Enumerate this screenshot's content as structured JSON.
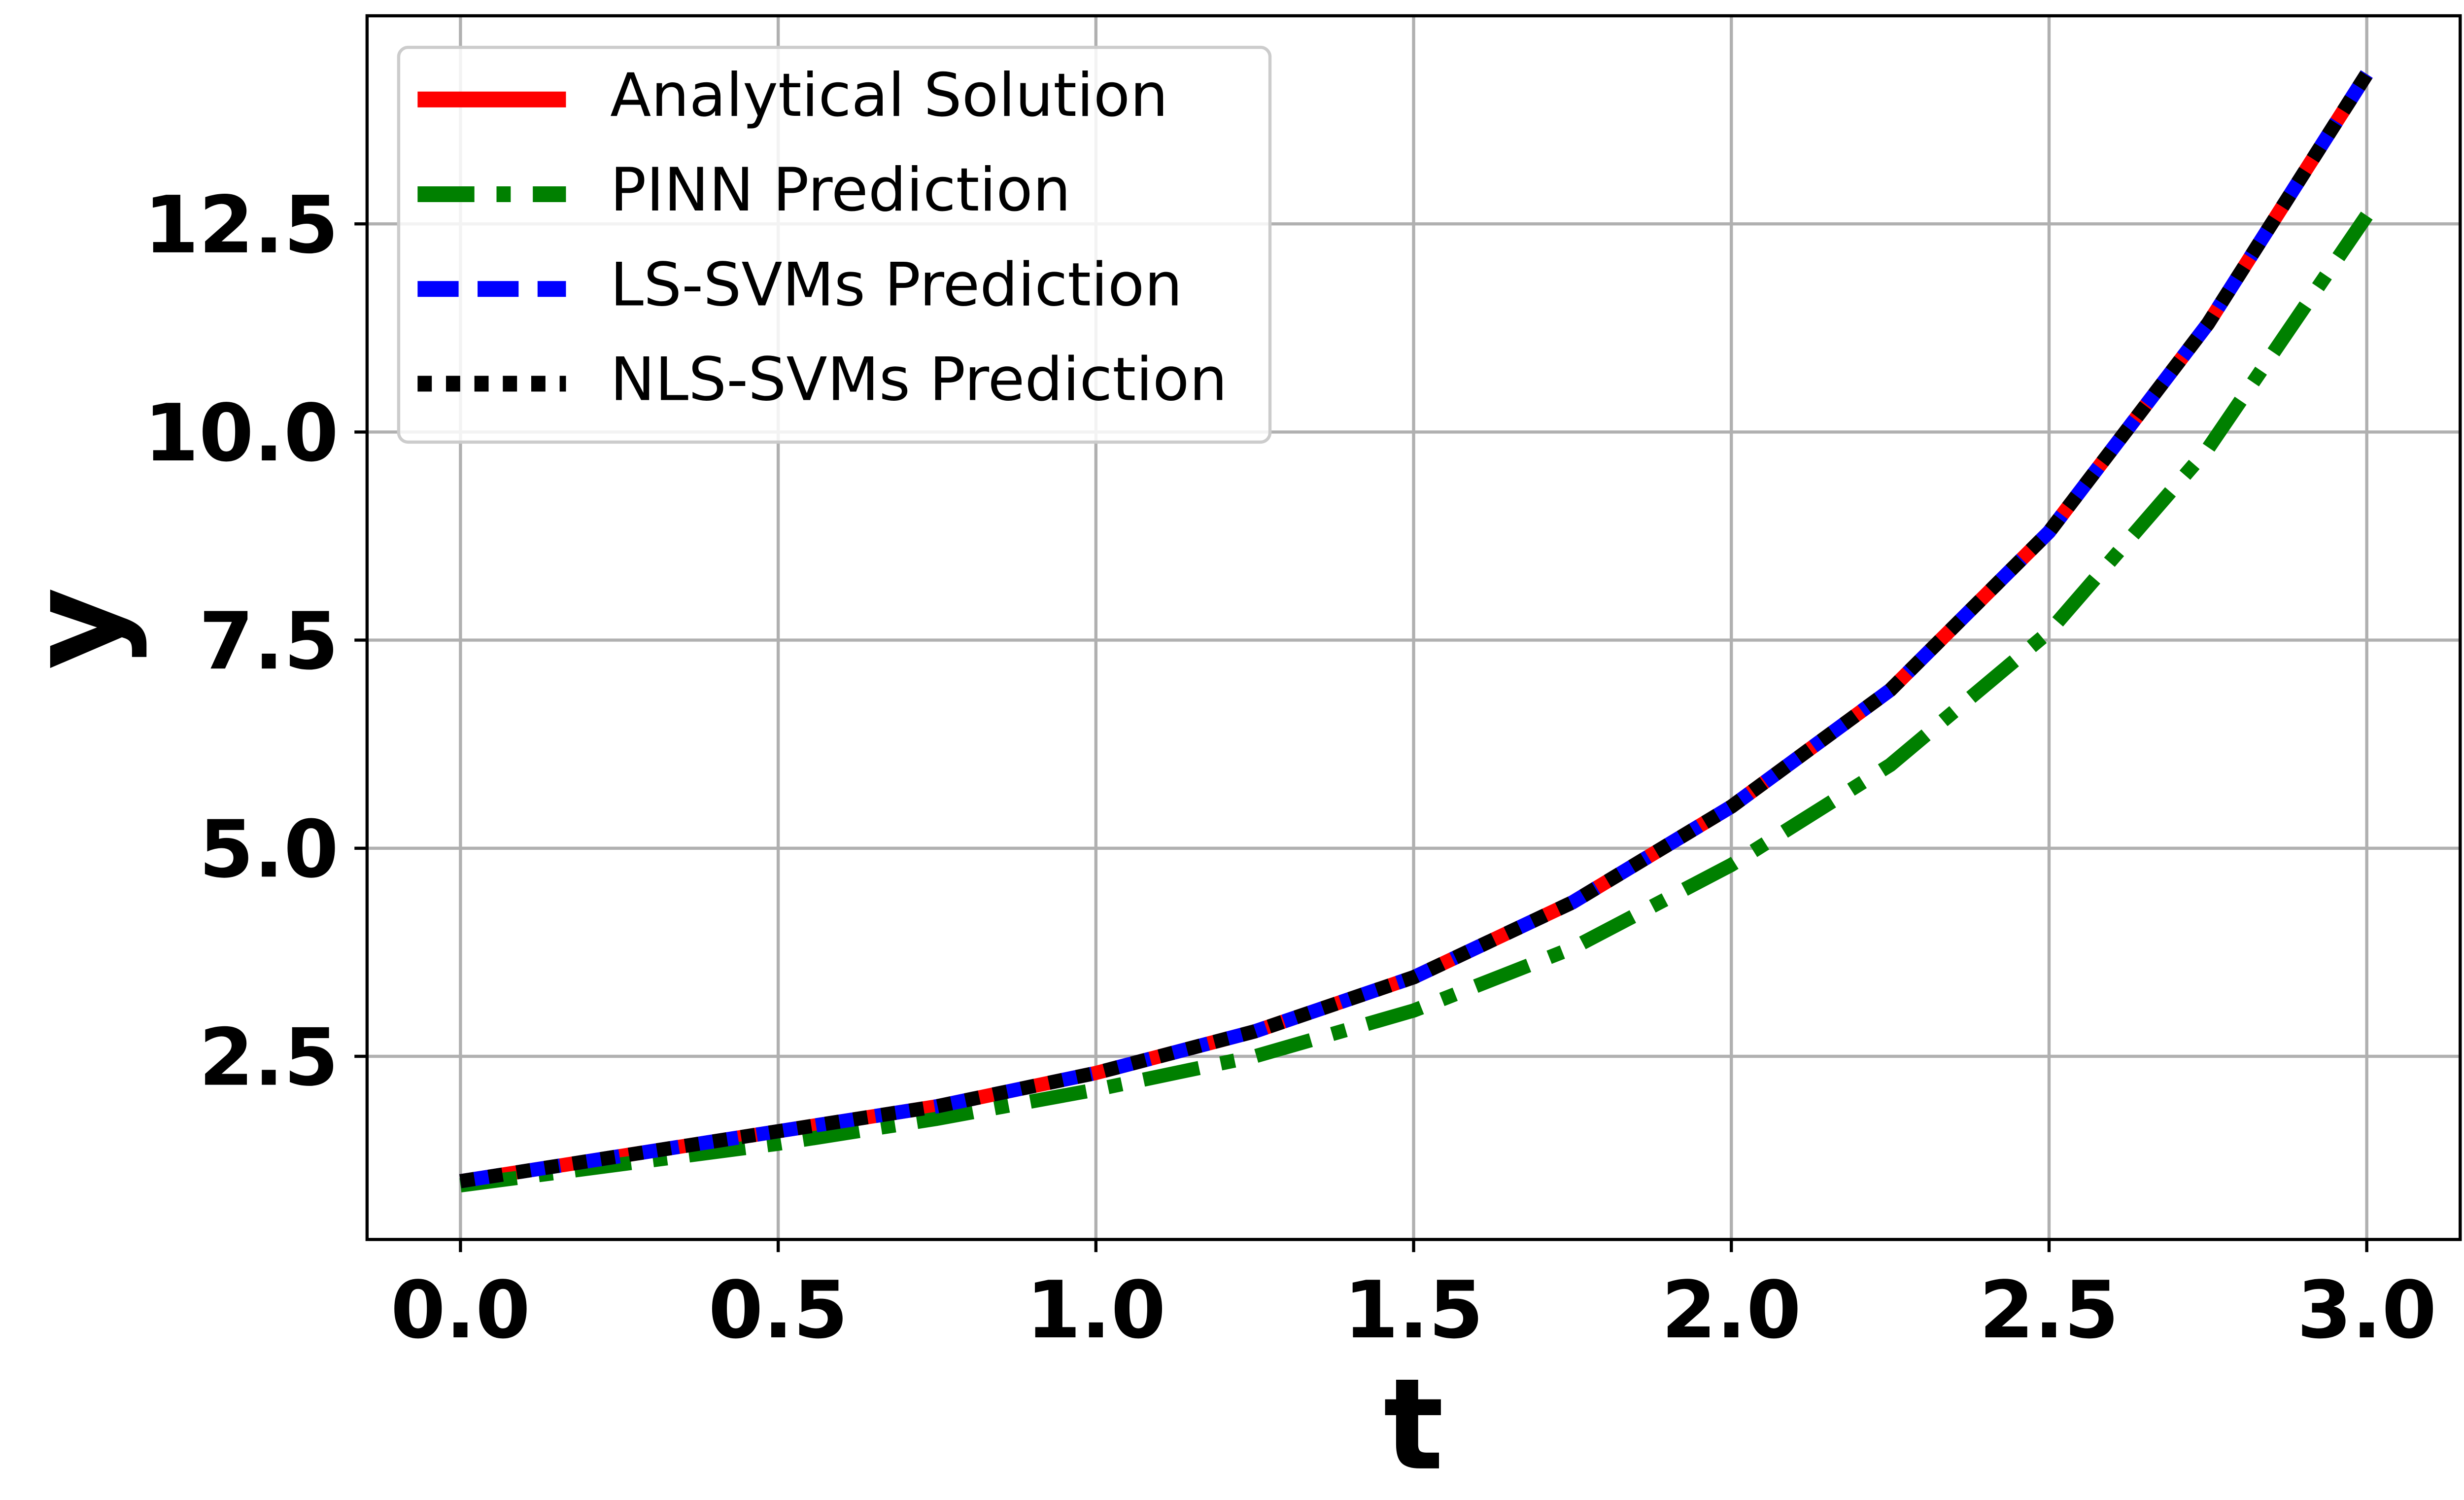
{
  "chart_data": {
    "type": "line",
    "xlabel": "t",
    "ylabel": "y",
    "x": [
      0,
      0.25,
      0.5,
      0.75,
      1.0,
      1.25,
      1.5,
      1.75,
      2.0,
      2.25,
      2.5,
      2.75,
      3.0
    ],
    "series": [
      {
        "name": "Analytical Solution",
        "color": "#ff0000",
        "linestyle": "solid",
        "values": [
          1.0,
          1.3,
          1.6,
          1.9,
          2.3,
          2.8,
          3.45,
          4.35,
          5.5,
          6.9,
          8.8,
          11.3,
          14.3
        ]
      },
      {
        "name": "PINN Prediction",
        "color": "#008000",
        "linestyle": "dashdot",
        "values": [
          0.95,
          1.2,
          1.45,
          1.75,
          2.1,
          2.5,
          3.05,
          3.8,
          4.8,
          6.0,
          7.6,
          9.8,
          12.6
        ]
      },
      {
        "name": "LS-SVMs Prediction",
        "color": "#0000ff",
        "linestyle": "dashed",
        "values": [
          1.0,
          1.3,
          1.6,
          1.9,
          2.3,
          2.8,
          3.45,
          4.35,
          5.5,
          6.9,
          8.8,
          11.3,
          14.3
        ]
      },
      {
        "name": "NLS-SVMs Prediction",
        "color": "#000000",
        "linestyle": "dotted",
        "values": [
          1.0,
          1.3,
          1.6,
          1.9,
          2.3,
          2.8,
          3.45,
          4.35,
          5.5,
          6.9,
          8.8,
          11.3,
          14.3
        ]
      }
    ],
    "xlim": [
      -0.147,
      3.147
    ],
    "ylim": [
      0.3,
      15.0
    ],
    "xticks": [
      {
        "value": 0,
        "label": "0.0"
      },
      0.5,
      {
        "value": 1,
        "label": "1.0"
      },
      1.5,
      {
        "value": 2,
        "label": "2.0"
      },
      2.5,
      {
        "value": 3,
        "label": "3.0"
      }
    ],
    "yticks": [
      2.5,
      {
        "value": 5,
        "label": "5.0"
      },
      7.5,
      {
        "value": 10,
        "label": "10.0"
      },
      12.5
    ],
    "grid": true,
    "legend": "upper left"
  }
}
